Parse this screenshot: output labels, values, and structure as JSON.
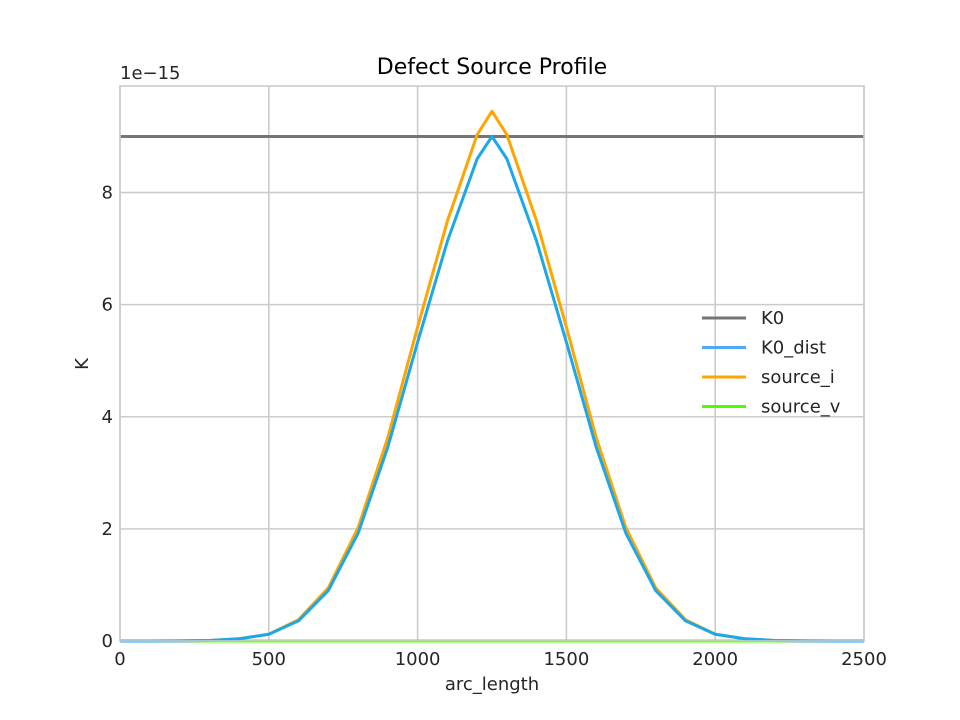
{
  "chart_data": {
    "type": "line",
    "title": "Defect Source Profile",
    "xlabel": "arc_length",
    "ylabel": "K",
    "y_offset_label": "1e−15",
    "xlim": [
      0,
      2500
    ],
    "ylim": [
      0,
      9.9
    ],
    "x_ticks": [
      0,
      500,
      1000,
      1500,
      2000,
      2500
    ],
    "x_tick_labels": [
      "0",
      "500",
      "1000",
      "1500",
      "2000",
      "2500"
    ],
    "y_ticks": [
      0,
      2,
      4,
      6,
      8
    ],
    "y_tick_labels": [
      "0",
      "2",
      "4",
      "6",
      "8"
    ],
    "grid": true,
    "legend_position": "center-right",
    "x": [
      0,
      100,
      200,
      300,
      400,
      500,
      600,
      700,
      800,
      900,
      1000,
      1100,
      1200,
      1250,
      1300,
      1400,
      1500,
      1600,
      1700,
      1800,
      1900,
      2000,
      2100,
      2200,
      2300,
      2400,
      2500
    ],
    "series": [
      {
        "name": "K0",
        "color": "#757575",
        "values": [
          9.0,
          9.0,
          9.0,
          9.0,
          9.0,
          9.0,
          9.0,
          9.0,
          9.0,
          9.0,
          9.0,
          9.0,
          9.0,
          9.0,
          9.0,
          9.0,
          9.0,
          9.0,
          9.0,
          9.0,
          9.0,
          9.0,
          9.0,
          9.0,
          9.0,
          9.0,
          9.0
        ]
      },
      {
        "name": "K0_dist",
        "color": "#1aa7ec",
        "values": [
          0.0,
          0.0,
          0.002,
          0.01,
          0.04,
          0.12,
          0.36,
          0.9,
          1.92,
          3.46,
          5.33,
          7.13,
          8.6,
          9.0,
          8.6,
          7.13,
          5.33,
          3.46,
          1.92,
          0.9,
          0.36,
          0.12,
          0.04,
          0.01,
          0.002,
          0.0,
          0.0
        ]
      },
      {
        "name": "source_i",
        "color": "#ffa500",
        "values": [
          0.0,
          0.0,
          0.002,
          0.01,
          0.04,
          0.12,
          0.38,
          0.95,
          2.02,
          3.63,
          5.6,
          7.49,
          9.03,
          9.45,
          9.03,
          7.49,
          5.6,
          3.63,
          2.02,
          0.95,
          0.38,
          0.12,
          0.04,
          0.01,
          0.002,
          0.0,
          0.0
        ]
      },
      {
        "name": "source_v",
        "color": "#4cff00",
        "values": [
          0.0,
          0.0,
          0.0,
          0.0,
          0.0,
          0.0,
          0.0,
          0.0,
          0.0,
          0.0,
          0.0,
          0.0,
          0.0,
          0.0,
          0.0,
          0.0,
          0.0,
          0.0,
          0.0,
          0.0,
          0.0,
          0.0,
          0.0,
          0.0,
          0.0,
          0.0,
          0.0
        ]
      }
    ]
  }
}
